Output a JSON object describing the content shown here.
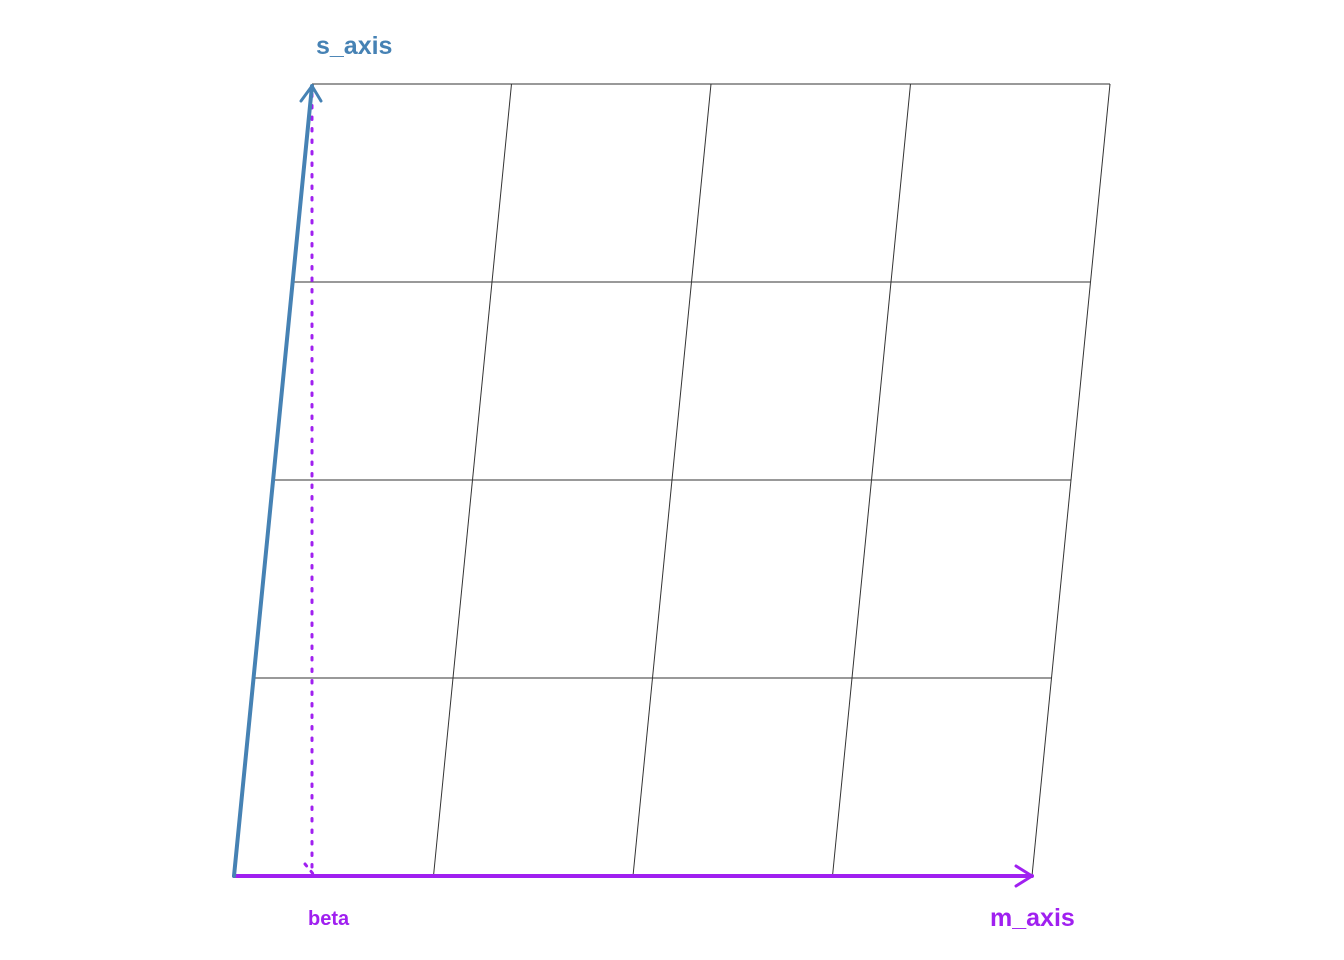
{
  "diagram": {
    "labels": {
      "s_axis": "s_axis",
      "m_axis": "m_axis",
      "beta": "beta"
    },
    "grid": {
      "columns": 4,
      "rows": 4
    },
    "colors": {
      "s_axis": "#4682b4",
      "m_axis": "#a020f0",
      "beta_projection": "#a020f0",
      "grid": "#333333",
      "background": "#ffffff"
    },
    "styles": {
      "beta_projection": "dotted",
      "grid": "solid"
    }
  }
}
